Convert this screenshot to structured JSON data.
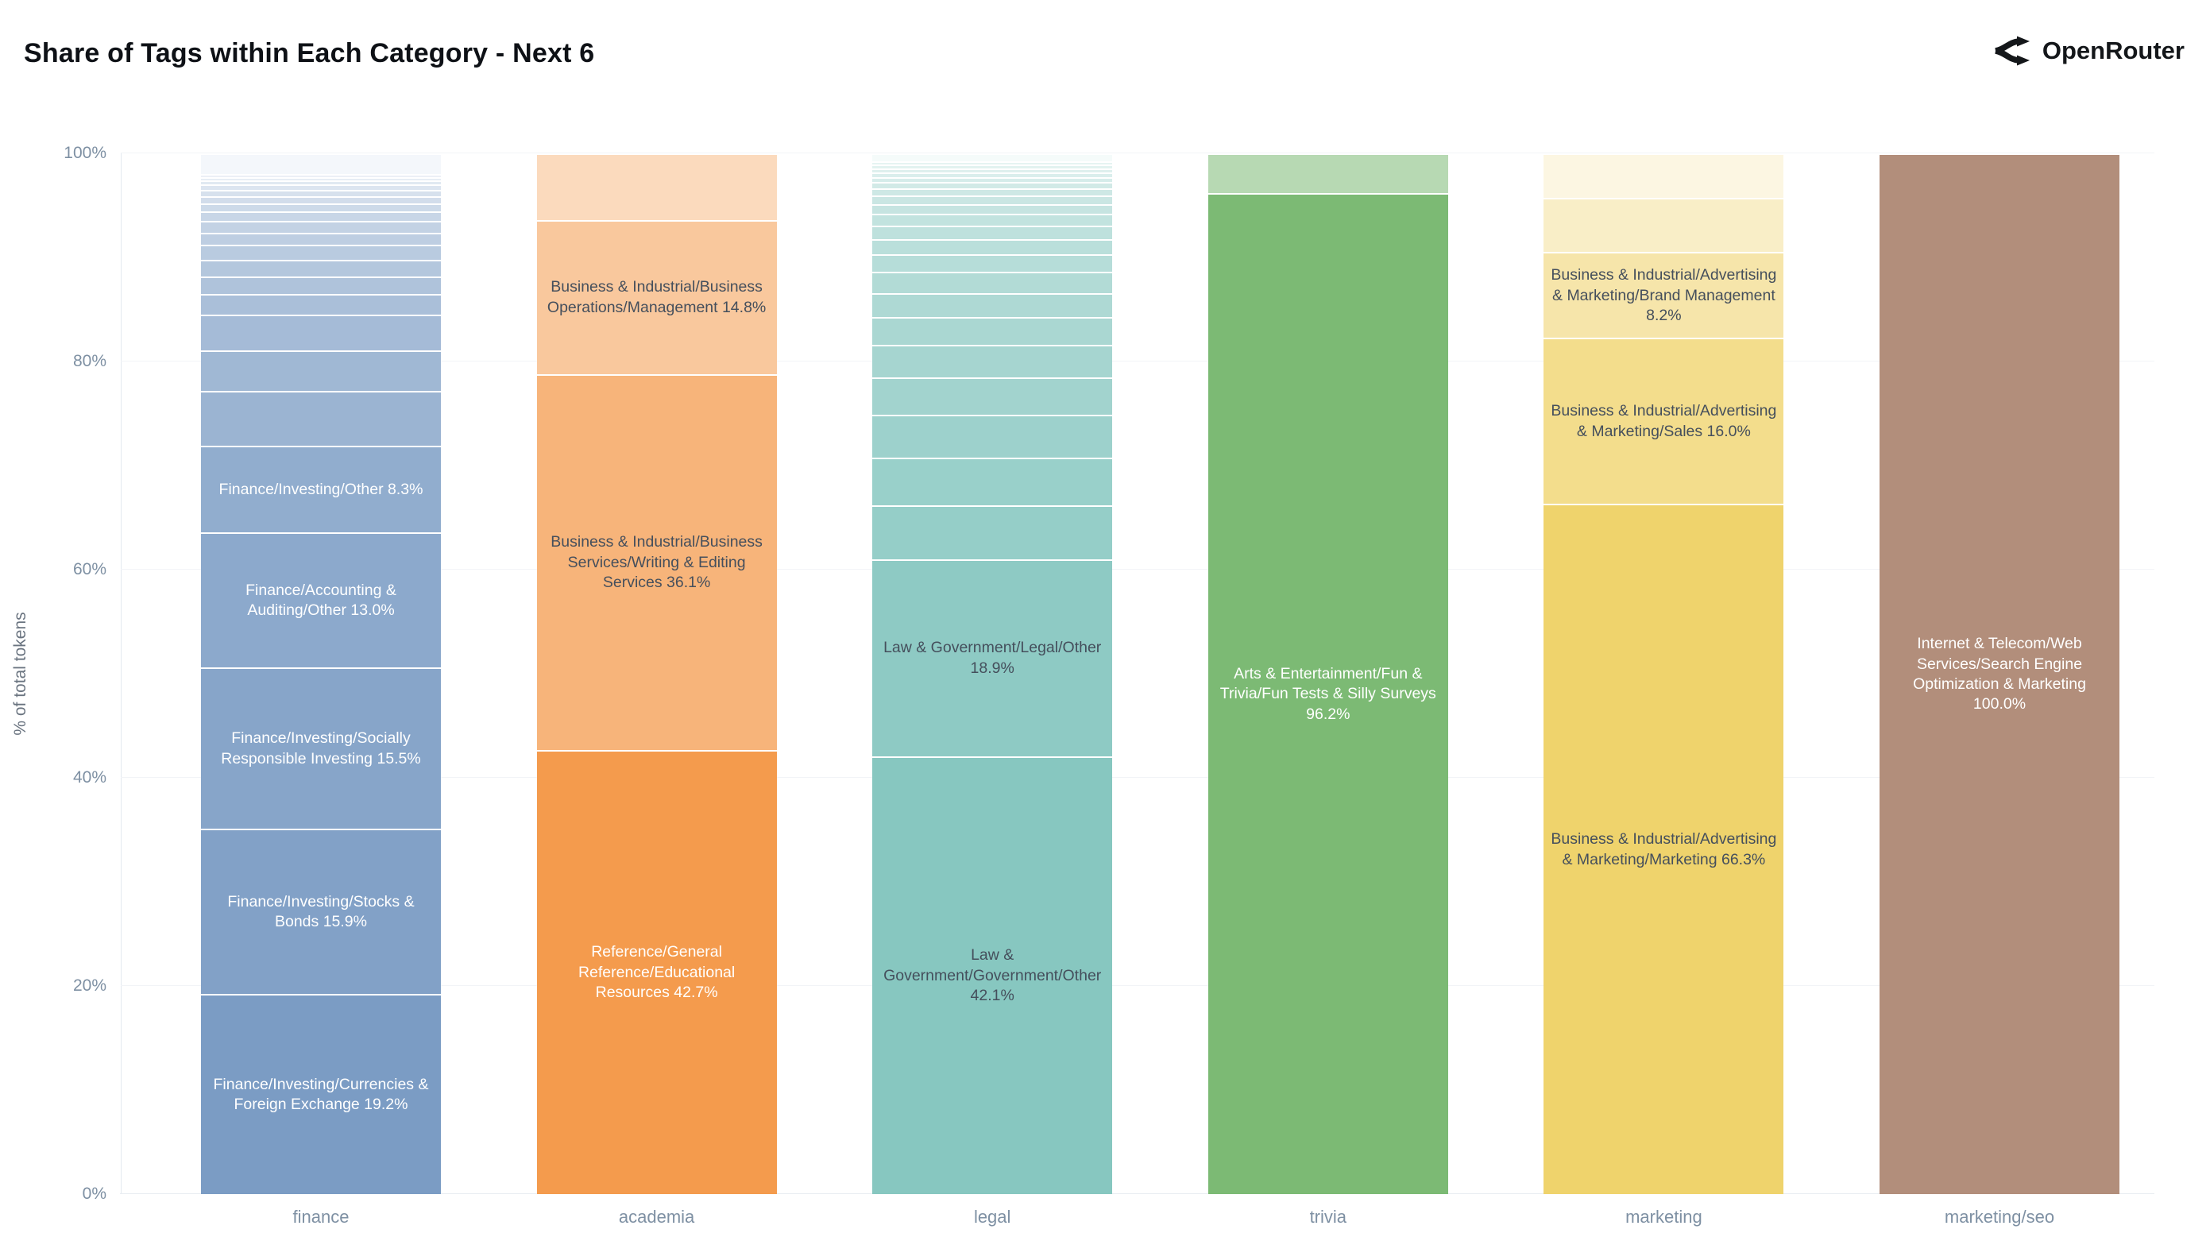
{
  "header": {
    "title": "Share of Tags within Each Category - Next 6",
    "brand": "OpenRouter"
  },
  "colors": {
    "title": "#0e1116",
    "axis_text": "#7e90a3",
    "grid": "#f2f4f7",
    "axis_line": "#e2e9f0",
    "dark_label": "#454f5c",
    "light_label": "#ffffff"
  },
  "chart_data": {
    "type": "bar",
    "stacked": true,
    "title": "Share of Tags within Each Category - Next 6",
    "xlabel": "",
    "ylabel": "% of total tokens",
    "ylim": [
      0,
      100
    ],
    "yticks": [
      0,
      20,
      40,
      60,
      80,
      100
    ],
    "ytick_labels": [
      "0%",
      "20%",
      "40%",
      "60%",
      "80%",
      "100%"
    ],
    "grid": true,
    "legend_position": "none",
    "categories": [
      "finance",
      "academia",
      "legal",
      "trivia",
      "marketing",
      "marketing/seo"
    ],
    "bars": [
      {
        "category": "finance",
        "base_color": "#7B9CC4",
        "segments": [
          {
            "pct": 19.2,
            "color": "#7B9CC4",
            "label": "Finance/Investing/Currencies & Foreign Exchange 19.2%",
            "label_color": "#ffffff"
          },
          {
            "pct": 15.9,
            "color": "#82A1C7",
            "label": "Finance/Investing/Stocks & Bonds 15.9%",
            "label_color": "#ffffff"
          },
          {
            "pct": 15.5,
            "color": "#87A5C9",
            "label": "Finance/Investing/Socially Responsible Investing 15.5%",
            "label_color": "#ffffff"
          },
          {
            "pct": 13.0,
            "color": "#8CA9CC",
            "label": "Finance/Accounting & Auditing/Other 13.0%",
            "label_color": "#ffffff"
          },
          {
            "pct": 8.3,
            "color": "#91ADCE",
            "label": "Finance/Investing/Other 8.3%",
            "label_color": "#ffffff"
          },
          {
            "pct": 5.3,
            "color": "#9BB4D2"
          },
          {
            "pct": 3.9,
            "color": "#A0B8D4"
          },
          {
            "pct": 3.4,
            "color": "#A5BBD7"
          },
          {
            "pct": 2.0,
            "color": "#AABFD9"
          },
          {
            "pct": 1.7,
            "color": "#AFC3DB"
          },
          {
            "pct": 1.6,
            "color": "#B4C7DD"
          },
          {
            "pct": 1.4,
            "color": "#B9CBE0"
          },
          {
            "pct": 1.2,
            "color": "#BECEE2"
          },
          {
            "pct": 1.1,
            "color": "#C3D2E4"
          },
          {
            "pct": 0.9,
            "color": "#C8D6E7"
          },
          {
            "pct": 0.8,
            "color": "#CDDAE9"
          },
          {
            "pct": 0.7,
            "color": "#D2DDEB"
          },
          {
            "pct": 0.6,
            "color": "#D7E1ED"
          },
          {
            "pct": 0.5,
            "color": "#DCE5F0"
          },
          {
            "pct": 0.4,
            "color": "#E1E9F2"
          },
          {
            "pct": 0.35,
            "color": "#E7EDF4"
          },
          {
            "pct": 0.3,
            "color": "#ECF0F6"
          },
          {
            "pct": 1.95,
            "color": "#F4F7FB"
          }
        ]
      },
      {
        "category": "academia",
        "base_color": "#F49B4D",
        "segments": [
          {
            "pct": 42.7,
            "color": "#F49B4D",
            "label": "Reference/General Reference/Educational Resources 42.7%",
            "label_color": "#ffffff"
          },
          {
            "pct": 36.1,
            "color": "#F7B47A",
            "label": "Business & Industrial/Business Services/Writing & Editing Services 36.1%",
            "label_color": "#454f5c"
          },
          {
            "pct": 14.8,
            "color": "#F9C89D",
            "label": "Business & Industrial/Business Operations/Management 14.8%",
            "label_color": "#454f5c"
          },
          {
            "pct": 6.4,
            "color": "#FBDABD"
          }
        ]
      },
      {
        "category": "legal",
        "base_color": "#87C7C0",
        "segments": [
          {
            "pct": 42.1,
            "color": "#87C7C0",
            "label": "Law & Government/Government/Other 42.1%",
            "label_color": "#454f5c"
          },
          {
            "pct": 18.9,
            "color": "#8ECAC4",
            "label": "Law & Government/Legal/Other 18.9%",
            "label_color": "#454f5c"
          },
          {
            "pct": 5.2,
            "color": "#95CEC8"
          },
          {
            "pct": 4.6,
            "color": "#99D0CA"
          },
          {
            "pct": 4.1,
            "color": "#9DD1CC"
          },
          {
            "pct": 3.6,
            "color": "#A2D3CE"
          },
          {
            "pct": 3.1,
            "color": "#A6D5D0"
          },
          {
            "pct": 2.7,
            "color": "#AAD7D2"
          },
          {
            "pct": 2.3,
            "color": "#AED9D4"
          },
          {
            "pct": 2.0,
            "color": "#B2DBD6"
          },
          {
            "pct": 1.7,
            "color": "#B6DDD9"
          },
          {
            "pct": 1.5,
            "color": "#BADFDB"
          },
          {
            "pct": 1.3,
            "color": "#BEE1DD"
          },
          {
            "pct": 1.1,
            "color": "#C2E3DF"
          },
          {
            "pct": 0.95,
            "color": "#C6E4E1"
          },
          {
            "pct": 0.8,
            "color": "#CAE6E3"
          },
          {
            "pct": 0.7,
            "color": "#CEE8E5"
          },
          {
            "pct": 0.6,
            "color": "#D2EAE7"
          },
          {
            "pct": 0.5,
            "color": "#D6ECEA"
          },
          {
            "pct": 0.45,
            "color": "#DAEEEC"
          },
          {
            "pct": 0.4,
            "color": "#DEF0EE"
          },
          {
            "pct": 0.35,
            "color": "#E2F2F0"
          },
          {
            "pct": 0.3,
            "color": "#E6F4F2"
          },
          {
            "pct": 0.75,
            "color": "#F5FBFA"
          }
        ]
      },
      {
        "category": "trivia",
        "base_color": "#7CBA74",
        "segments": [
          {
            "pct": 96.2,
            "color": "#7CBA74",
            "label": "Arts & Entertainment/Fun & Trivia/Fun Tests & Silly Surveys 96.2%",
            "label_color": "#ffffff"
          },
          {
            "pct": 3.8,
            "color": "#B7D9B3"
          }
        ]
      },
      {
        "category": "marketing",
        "base_color": "#EFD36C",
        "segments": [
          {
            "pct": 66.3,
            "color": "#EFD36C",
            "label": "Business & Industrial/Advertising & Marketing/Marketing 66.3%",
            "label_color": "#454f5c"
          },
          {
            "pct": 16.0,
            "color": "#F3DD8C",
            "label": "Business & Industrial/Advertising & Marketing/Sales 16.0%",
            "label_color": "#454f5c"
          },
          {
            "pct": 8.2,
            "color": "#F6E5AA",
            "label": "Business & Industrial/Advertising & Marketing/Brand Management 8.2%",
            "label_color": "#454f5c"
          },
          {
            "pct": 5.2,
            "color": "#F9EEC7"
          },
          {
            "pct": 4.3,
            "color": "#FCF6E2"
          }
        ]
      },
      {
        "category": "marketing/seo",
        "base_color": "#B28E7B",
        "segments": [
          {
            "pct": 100.0,
            "color": "#B28E7B",
            "label": "Internet & Telecom/Web Services/Search Engine Optimization & Marketing 100.0%",
            "label_color": "#ffffff"
          }
        ]
      }
    ]
  }
}
